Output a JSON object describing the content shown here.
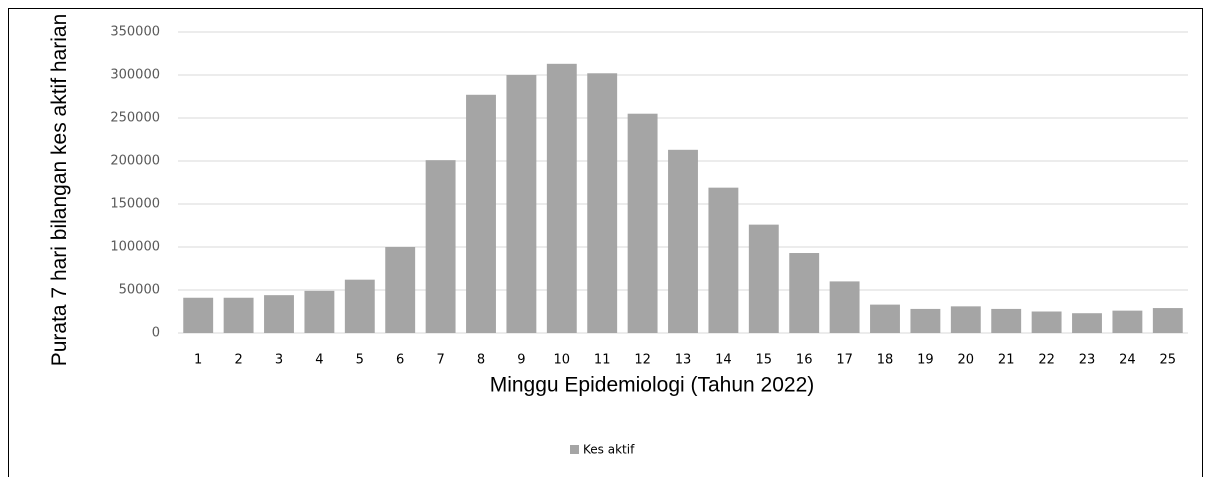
{
  "chart_data": {
    "type": "bar",
    "ylabel": "Purata 7 hari bilangan kes aktif harian",
    "xlabel": "Minggu Epidemiologi (Tahun 2022)",
    "categories": [
      "1",
      "2",
      "3",
      "4",
      "5",
      "6",
      "7",
      "8",
      "9",
      "10",
      "11",
      "12",
      "13",
      "14",
      "15",
      "16",
      "17",
      "18",
      "19",
      "20",
      "21",
      "22",
      "23",
      "24",
      "25"
    ],
    "series": [
      {
        "name": "Kes aktif",
        "color": "#a5a5a5",
        "values": [
          41000,
          41000,
          44000,
          49000,
          62000,
          100000,
          201000,
          277000,
          300000,
          313000,
          302000,
          255000,
          213000,
          169000,
          126000,
          93000,
          60000,
          33000,
          28000,
          31000,
          28000,
          25000,
          23000,
          26000,
          29000
        ]
      }
    ],
    "ylim": [
      0,
      350000
    ],
    "yticks": [
      0,
      50000,
      100000,
      150000,
      200000,
      250000,
      300000,
      350000
    ],
    "grid": true,
    "legend": "bottom"
  }
}
